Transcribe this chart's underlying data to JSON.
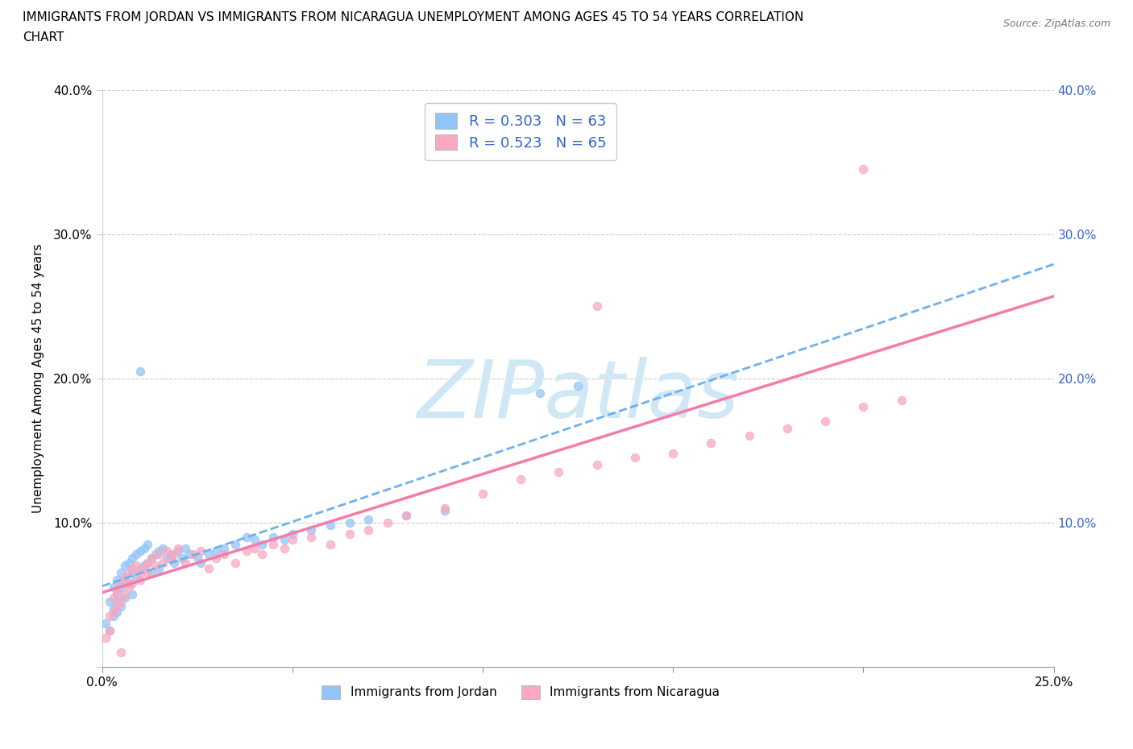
{
  "title_line1": "IMMIGRANTS FROM JORDAN VS IMMIGRANTS FROM NICARAGUA UNEMPLOYMENT AMONG AGES 45 TO 54 YEARS CORRELATION",
  "title_line2": "CHART",
  "source": "Source: ZipAtlas.com",
  "ylabel": "Unemployment Among Ages 45 to 54 years",
  "xlabel_jordan": "Immigrants from Jordan",
  "xlabel_nicaragua": "Immigrants from Nicaragua",
  "xlim": [
    0.0,
    0.25
  ],
  "ylim": [
    0.0,
    0.4
  ],
  "jordan_color": "#92C5F7",
  "nicaragua_color": "#F9A8C0",
  "jordan_trendline_color": "#6EB0EE",
  "nicaragua_trendline_color": "#F47BAA",
  "jordan_R": 0.303,
  "jordan_N": 63,
  "nicaragua_R": 0.523,
  "nicaragua_N": 65,
  "watermark": "ZIPatlas",
  "watermark_color": "#D0E8F5",
  "background_color": "#ffffff",
  "grid_color": "#cccccc",
  "legend_text_color": "#3366CC",
  "jordan_x": [
    0.001,
    0.002,
    0.002,
    0.003,
    0.003,
    0.003,
    0.004,
    0.004,
    0.004,
    0.004,
    0.005,
    0.005,
    0.005,
    0.006,
    0.006,
    0.006,
    0.007,
    0.007,
    0.008,
    0.008,
    0.008,
    0.009,
    0.009,
    0.01,
    0.01,
    0.011,
    0.011,
    0.012,
    0.012,
    0.013,
    0.013,
    0.014,
    0.015,
    0.015,
    0.016,
    0.017,
    0.018,
    0.019,
    0.02,
    0.021,
    0.022,
    0.023,
    0.025,
    0.026,
    0.028,
    0.03,
    0.032,
    0.035,
    0.038,
    0.04,
    0.042,
    0.045,
    0.048,
    0.05,
    0.055,
    0.06,
    0.065,
    0.07,
    0.08,
    0.09,
    0.01,
    0.115,
    0.125
  ],
  "jordan_y": [
    0.03,
    0.045,
    0.025,
    0.055,
    0.04,
    0.035,
    0.06,
    0.05,
    0.045,
    0.038,
    0.065,
    0.055,
    0.042,
    0.07,
    0.06,
    0.048,
    0.072,
    0.058,
    0.075,
    0.065,
    0.05,
    0.078,
    0.062,
    0.08,
    0.068,
    0.082,
    0.07,
    0.085,
    0.072,
    0.075,
    0.065,
    0.078,
    0.08,
    0.068,
    0.082,
    0.075,
    0.078,
    0.072,
    0.08,
    0.075,
    0.082,
    0.078,
    0.076,
    0.072,
    0.078,
    0.08,
    0.082,
    0.085,
    0.09,
    0.088,
    0.085,
    0.09,
    0.088,
    0.092,
    0.095,
    0.098,
    0.1,
    0.102,
    0.105,
    0.108,
    0.205,
    0.19,
    0.195
  ],
  "nicaragua_x": [
    0.001,
    0.002,
    0.002,
    0.003,
    0.003,
    0.004,
    0.004,
    0.005,
    0.005,
    0.006,
    0.006,
    0.007,
    0.007,
    0.008,
    0.008,
    0.009,
    0.01,
    0.01,
    0.011,
    0.012,
    0.012,
    0.013,
    0.014,
    0.015,
    0.016,
    0.017,
    0.018,
    0.019,
    0.02,
    0.022,
    0.024,
    0.026,
    0.028,
    0.03,
    0.032,
    0.035,
    0.038,
    0.04,
    0.042,
    0.045,
    0.048,
    0.05,
    0.055,
    0.06,
    0.065,
    0.07,
    0.075,
    0.08,
    0.09,
    0.1,
    0.11,
    0.12,
    0.13,
    0.14,
    0.15,
    0.16,
    0.17,
    0.18,
    0.19,
    0.2,
    0.09,
    0.2,
    0.13,
    0.21,
    0.005
  ],
  "nicaragua_y": [
    0.02,
    0.035,
    0.025,
    0.048,
    0.038,
    0.052,
    0.042,
    0.058,
    0.045,
    0.062,
    0.05,
    0.065,
    0.055,
    0.068,
    0.058,
    0.07,
    0.065,
    0.06,
    0.068,
    0.072,
    0.065,
    0.075,
    0.07,
    0.078,
    0.072,
    0.08,
    0.075,
    0.078,
    0.082,
    0.072,
    0.078,
    0.08,
    0.068,
    0.075,
    0.078,
    0.072,
    0.08,
    0.082,
    0.078,
    0.085,
    0.082,
    0.088,
    0.09,
    0.085,
    0.092,
    0.095,
    0.1,
    0.105,
    0.11,
    0.12,
    0.13,
    0.135,
    0.14,
    0.145,
    0.148,
    0.155,
    0.16,
    0.165,
    0.17,
    0.18,
    0.355,
    0.345,
    0.25,
    0.185,
    0.01
  ],
  "jordan_trend": [
    0.0,
    0.25,
    0.048,
    0.098
  ],
  "nicaragua_trend": [
    0.0,
    0.25,
    0.005,
    0.25
  ]
}
